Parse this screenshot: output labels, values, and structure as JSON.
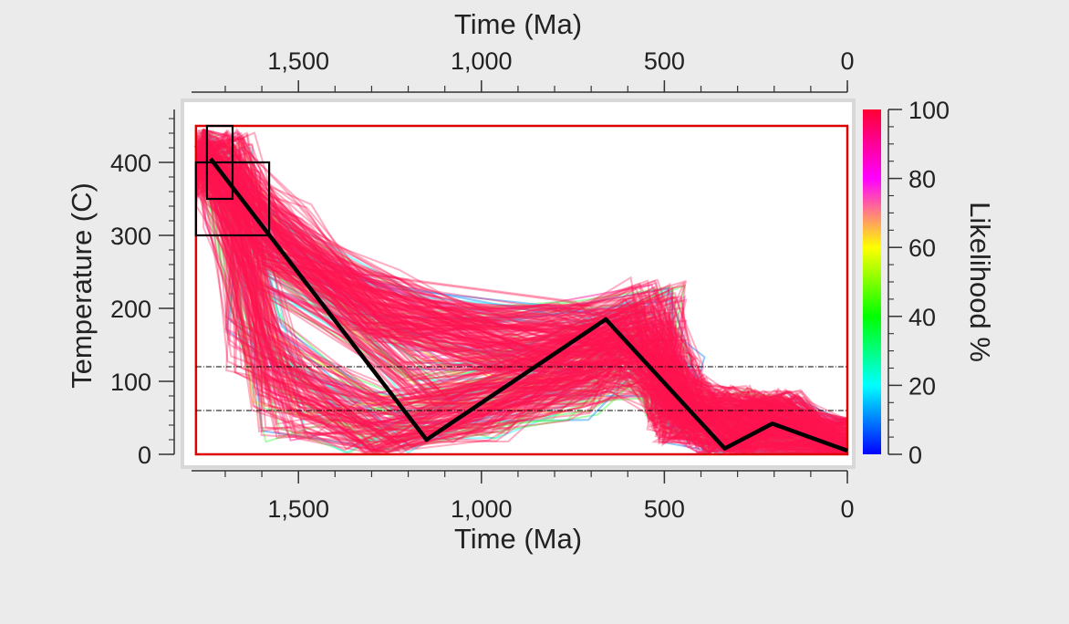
{
  "chart_data": {
    "type": "line",
    "xlabel_top": "Time (Ma)",
    "xlabel_bottom": "Time (Ma)",
    "ylabel": "Temperature (C)",
    "xlim": [
      1800,
      0
    ],
    "ylim": [
      0,
      470
    ],
    "x_ticks": [
      1500,
      1000,
      500,
      0
    ],
    "x_tick_labels": [
      "1,500",
      "1,000",
      "500",
      "0"
    ],
    "y_ticks": [
      0,
      100,
      200,
      300,
      400
    ],
    "y_tick_labels": [
      "0",
      "100",
      "200",
      "300",
      "400"
    ],
    "grid": false,
    "colorbar": {
      "label": "Likelihood %",
      "range": [
        0,
        100
      ],
      "ticks": [
        0,
        20,
        40,
        60,
        80,
        100
      ],
      "tick_labels": [
        "0",
        "20",
        "40",
        "60",
        "80",
        "100"
      ],
      "colors": [
        "#0000ff",
        "#00ffff",
        "#00ff00",
        "#ffff00",
        "#ff00ff",
        "#ff0033"
      ]
    },
    "envelope_box": {
      "x": [
        1780,
        0
      ],
      "y": [
        0,
        450
      ],
      "color": "#dd0000"
    },
    "constraint_boxes": [
      {
        "x": [
          1780,
          1580
        ],
        "y": [
          300,
          400
        ]
      },
      {
        "x": [
          1750,
          1680
        ],
        "y": [
          350,
          450
        ]
      }
    ],
    "reference_lines": [
      {
        "y": 120,
        "style": "dash-dot"
      },
      {
        "y": 60,
        "style": "dash-dot"
      }
    ],
    "best_fit_path": {
      "color": "#000000",
      "x": [
        1740,
        1150,
        660,
        335,
        205,
        0
      ],
      "y": [
        405,
        20,
        185,
        8,
        42,
        5
      ]
    },
    "path_ensemble": {
      "description_series_color": "#ff1450",
      "templates": [
        {
          "x": [
            1780,
            1700,
            1540,
            1250,
            800,
            560,
            465,
            445,
            300,
            200,
            0
          ],
          "y": [
            400,
            400,
            300,
            200,
            165,
            160,
            95,
            65,
            50,
            45,
            5
          ]
        },
        {
          "x": [
            1760,
            1720,
            1600,
            1300,
            900,
            520,
            470,
            450,
            300,
            200,
            0
          ],
          "y": [
            430,
            400,
            300,
            210,
            150,
            200,
            90,
            55,
            45,
            45,
            5
          ]
        },
        {
          "x": [
            1780,
            1720,
            1580,
            1150,
            700,
            560,
            480,
            450,
            330,
            200,
            0
          ],
          "y": [
            380,
            400,
            270,
            110,
            130,
            170,
            85,
            60,
            20,
            45,
            5
          ]
        },
        {
          "x": [
            1760,
            1700,
            1620,
            1250,
            760,
            600,
            470,
            450,
            320,
            190,
            0
          ],
          "y": [
            420,
            380,
            150,
            40,
            90,
            120,
            85,
            55,
            30,
            40,
            5
          ]
        },
        {
          "x": [
            1760,
            1680,
            1550,
            1300,
            1000,
            700,
            540,
            470,
            350,
            220,
            0
          ],
          "y": [
            410,
            350,
            60,
            30,
            60,
            120,
            150,
            70,
            40,
            45,
            5
          ]
        }
      ]
    }
  }
}
